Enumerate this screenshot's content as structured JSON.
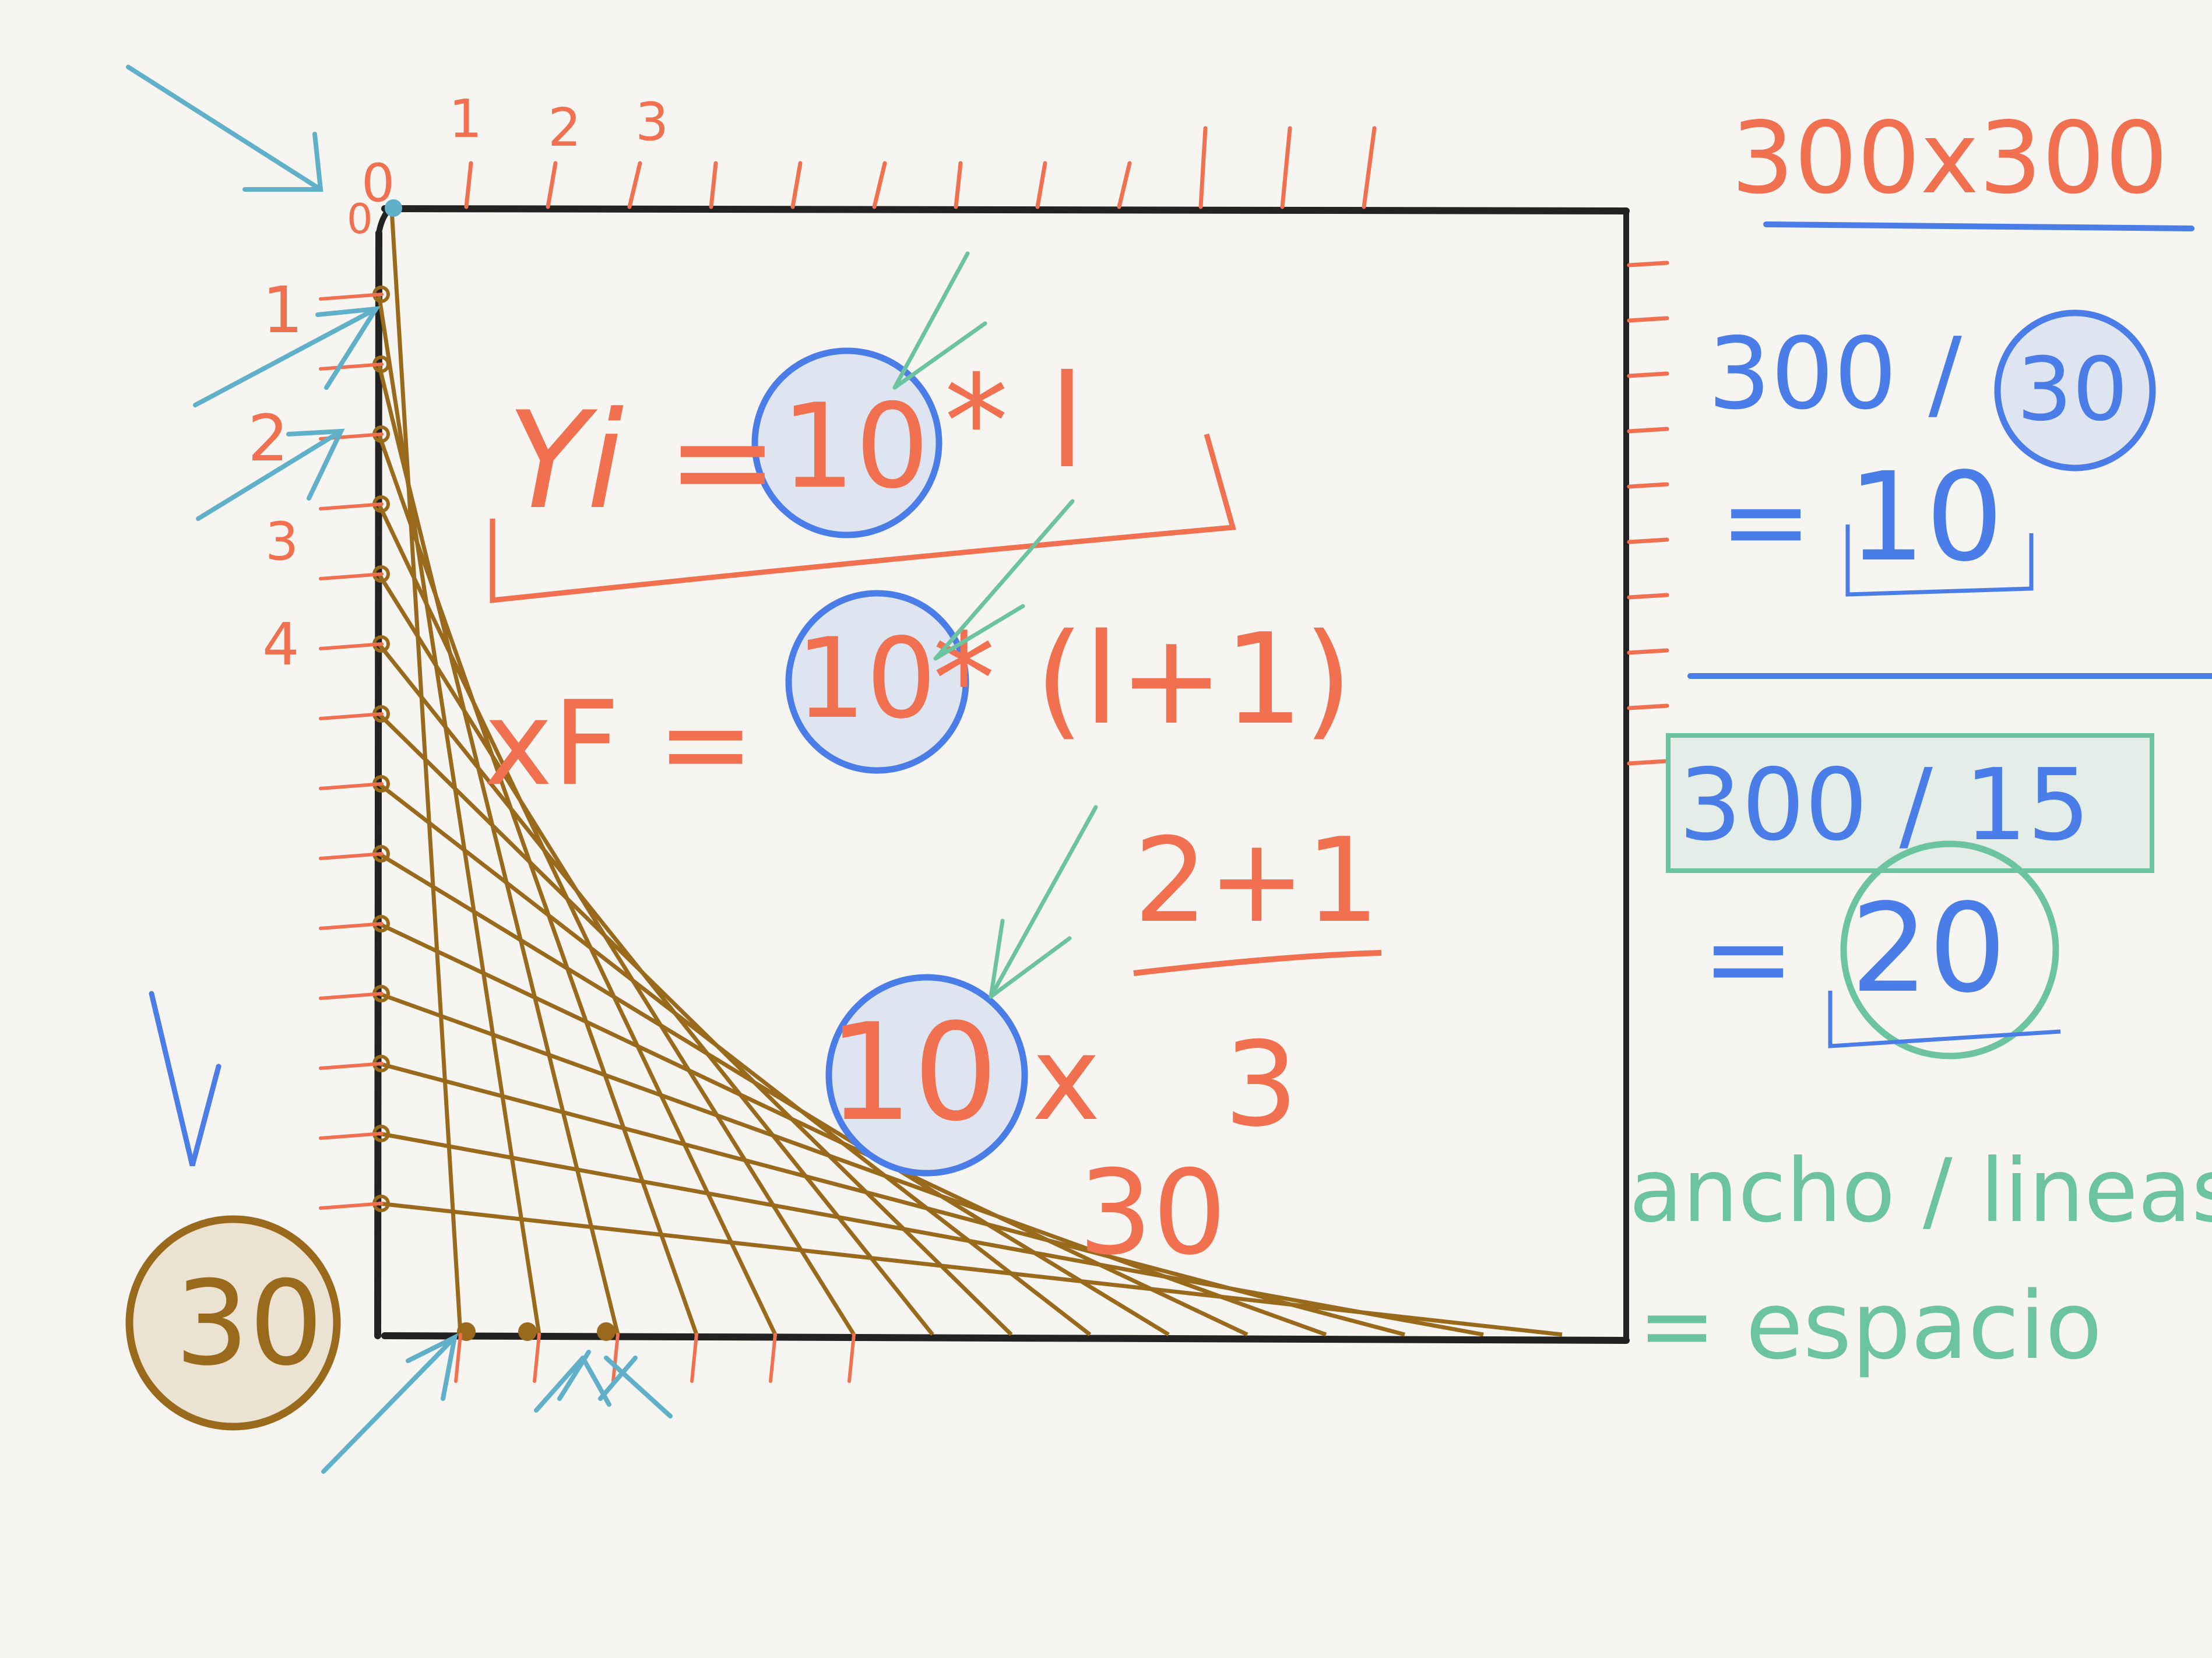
{
  "colors": {
    "background": "#f6f5f1",
    "frame": "#222222",
    "orange": "#f07050",
    "blue": "#4a7de8",
    "green": "#6cc3a0",
    "brown": "#9a6a1c",
    "cyan_arrow": "#5fb0c8",
    "circle_fill": "#dfe5f0",
    "brown_fill": "#ece2d2"
  },
  "top_axis_numbers": [
    "0",
    "1",
    "2",
    "3"
  ],
  "left_axis_numbers": [
    "1",
    "2",
    "3",
    "4"
  ],
  "left_zero_label": "0",
  "formula_yi": {
    "lhs": "Yi =",
    "circled": "10",
    "rhs": "* l"
  },
  "formula_xf": {
    "lhs": "xF =",
    "circled": "10",
    "rhs": "* (l+1)"
  },
  "fraction": {
    "top": "2+1",
    "bottom": "3"
  },
  "multiplication": {
    "circled": "10",
    "op": "x",
    "factor": "3",
    "result": "30"
  },
  "canvas_size": "300x300",
  "division_30": {
    "lhs": "300 /",
    "circled": "30",
    "result_prefix": "=",
    "result": "10"
  },
  "division_15": {
    "expr": "300 / 15",
    "result_prefix": "=",
    "result": "20"
  },
  "rule": {
    "line1": "ancho / lineas",
    "line2": "= espacio"
  },
  "line_count_badge": "30",
  "string_art": {
    "line_count": 15,
    "shown_lines": 14
  }
}
